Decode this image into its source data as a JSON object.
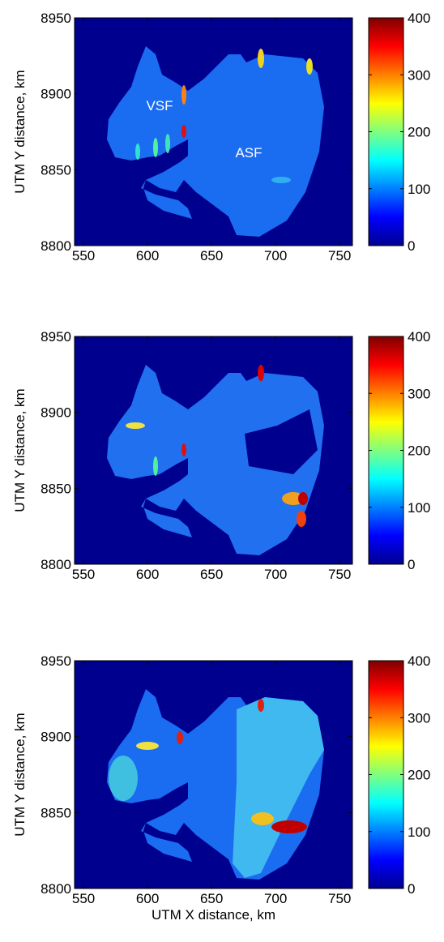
{
  "chart_data": [
    {
      "type": "image",
      "ylabel": "UTM Y distance, km",
      "xlim": [
        543,
        760
      ],
      "ylim": [
        8800,
        8950
      ],
      "xticks": [
        550,
        600,
        650,
        700,
        750
      ],
      "yticks": [
        8800,
        8850,
        8900,
        8950
      ],
      "colormap": "jet",
      "clim": [
        0,
        400
      ],
      "cticks": [
        0,
        100,
        200,
        300,
        400
      ],
      "annotations": [
        "VSF",
        "ASF"
      ]
    },
    {
      "type": "image",
      "ylabel": "UTM Y distance, km",
      "xlim": [
        543,
        760
      ],
      "ylim": [
        8800,
        8950
      ],
      "xticks": [
        550,
        600,
        650,
        700,
        750
      ],
      "yticks": [
        8800,
        8850,
        8900,
        8950
      ],
      "colormap": "jet",
      "clim": [
        0,
        400
      ],
      "cticks": [
        0,
        100,
        200,
        300,
        400
      ]
    },
    {
      "type": "image",
      "ylabel": "UTM Y distance, km",
      "xlabel": "UTM X distance, km",
      "xlim": [
        543,
        760
      ],
      "ylim": [
        8800,
        8950
      ],
      "xticks": [
        550,
        600,
        650,
        700,
        750
      ],
      "yticks": [
        8800,
        8850,
        8900,
        8950
      ],
      "colormap": "jet",
      "clim": [
        0,
        400
      ],
      "cticks": [
        0,
        100,
        200,
        300,
        400
      ]
    }
  ]
}
